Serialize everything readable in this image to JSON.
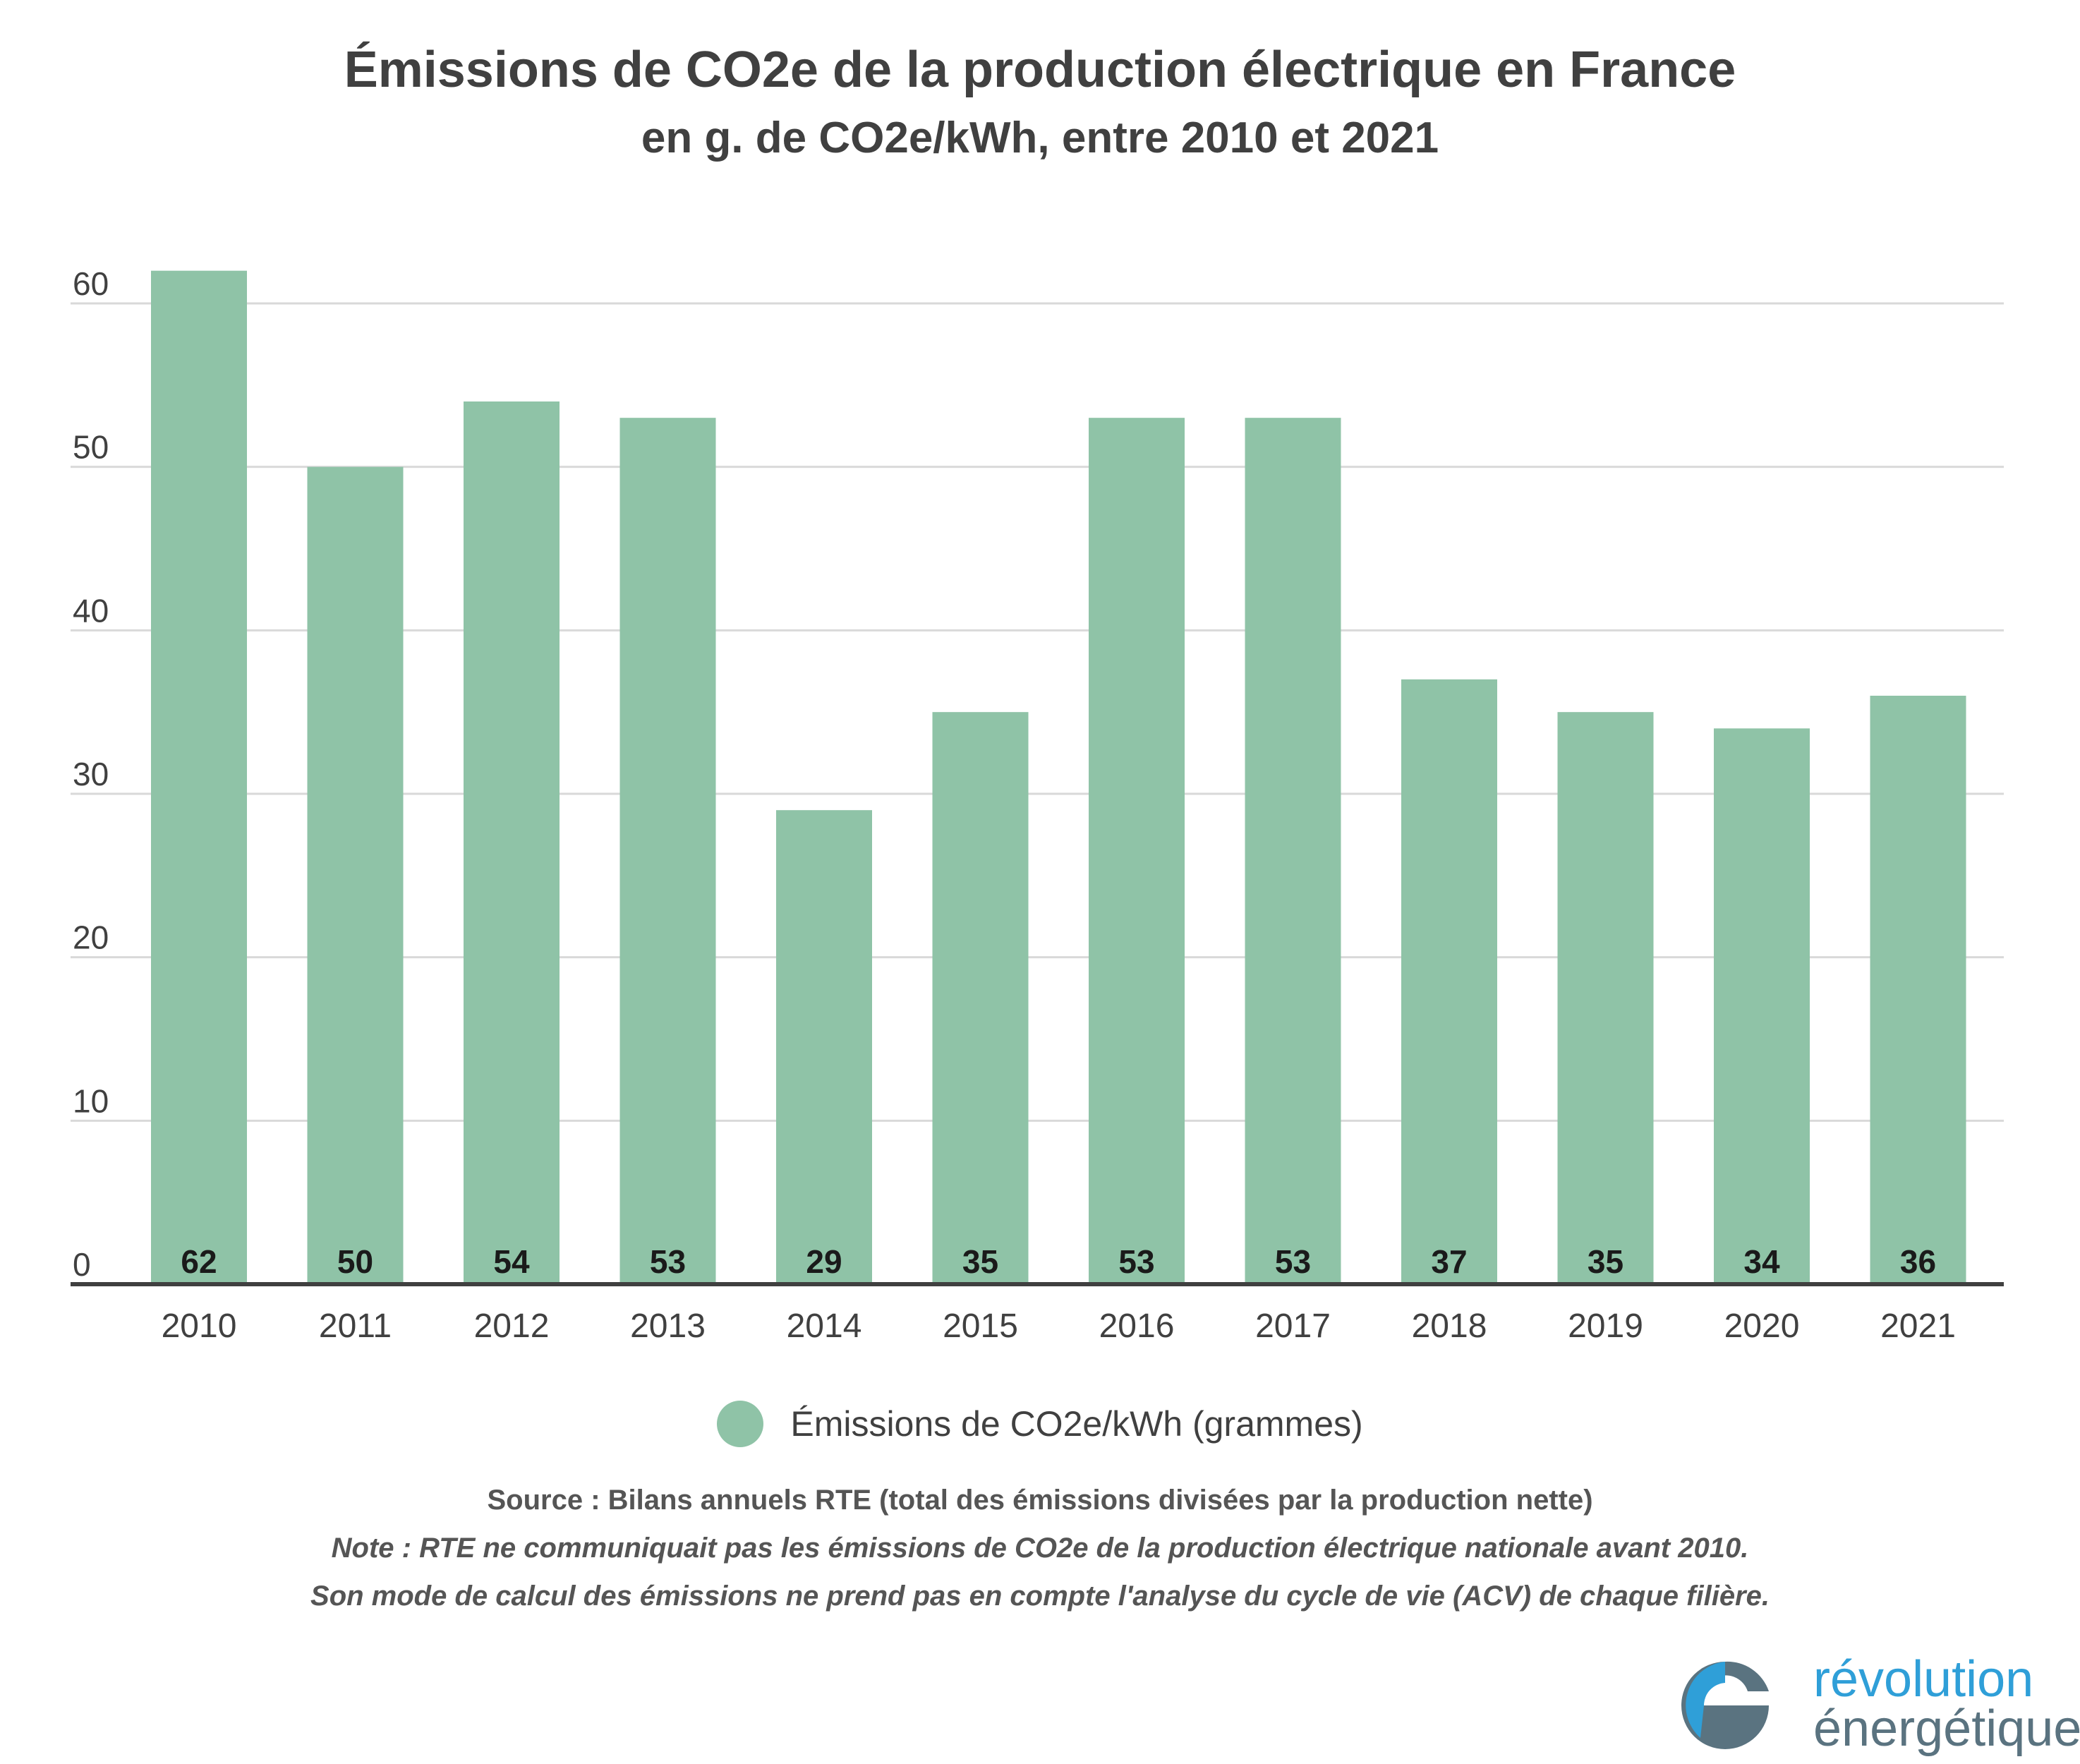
{
  "chart_data": {
    "type": "bar",
    "title": "Émissions de CO2e de la production électrique en France",
    "subtitle": "en g. de CO2e/kWh, entre 2010 et 2021",
    "categories": [
      "2010",
      "2011",
      "2012",
      "2013",
      "2014",
      "2015",
      "2016",
      "2017",
      "2018",
      "2019",
      "2020",
      "2021"
    ],
    "series": [
      {
        "name": "Émissions de CO2e/kWh (grammes)",
        "values": [
          62,
          50,
          54,
          53,
          29,
          35,
          53,
          53,
          37,
          35,
          34,
          36
        ]
      }
    ],
    "ylim": [
      0,
      60
    ],
    "yticks": [
      0,
      10,
      20,
      30,
      40,
      50,
      60
    ],
    "grid": true,
    "legend_position": "bottom",
    "data_labels": "inside-base",
    "colors": {
      "bar": "#8fc3a7",
      "grid": "#d9d9d9",
      "axis": "#404040",
      "text": "#404040"
    }
  },
  "legend": {
    "label": "Émissions de CO2e/kWh (grammes)"
  },
  "footer": {
    "source": "Source : Bilans annuels RTE (total des émissions divisées par la production nette)",
    "note1": "Note : RTE ne communiquait pas les émissions de CO2e de la production électrique nationale avant 2010.",
    "note2": "Son mode de calcul des émissions ne prend pas en compte l'analyse du cycle de vie (ACV) de chaque filière."
  },
  "logo": {
    "line1": "révolution",
    "line2": "énergétique",
    "colors": {
      "blue": "#2f9fd8",
      "slate": "#5a7380"
    }
  }
}
